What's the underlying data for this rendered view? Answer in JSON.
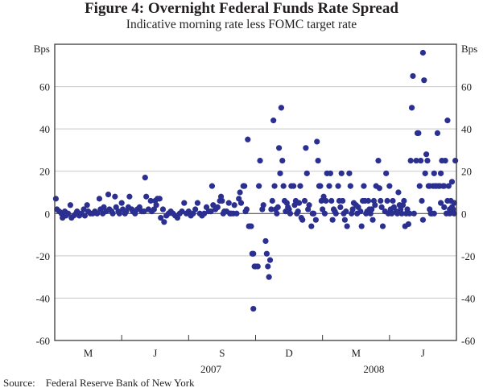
{
  "chart_data": {
    "type": "scatter",
    "title": "Figure 4: Overnight Federal Funds Rate Spread",
    "subtitle": "Indicative morning rate less FOMC target rate",
    "ylabel_left": "Bps",
    "ylabel_right": "Bps",
    "xlabel": "",
    "ylim": [
      -60,
      80
    ],
    "yticks": [
      60,
      40,
      20,
      0,
      -20,
      -40,
      -60
    ],
    "grid": true,
    "x_unit": "months since 1 Feb 2007",
    "xlim": [
      0,
      18
    ],
    "x_major_ticks": [
      3,
      6,
      9,
      12,
      15
    ],
    "x_period_labels": [
      {
        "label": "M",
        "center": 1.5
      },
      {
        "label": "J",
        "center": 4.5
      },
      {
        "label": "S",
        "center": 7.5
      },
      {
        "label": "D",
        "center": 10.5
      },
      {
        "label": "M",
        "center": 13.5
      },
      {
        "label": "J",
        "center": 16.5
      }
    ],
    "year_labels": [
      {
        "label": "2007",
        "center": 7.0
      },
      {
        "label": "2008",
        "center": 14.3
      }
    ],
    "series": [
      {
        "name": "Spread",
        "color": "#2b2f8f",
        "points": [
          [
            0.05,
            7
          ],
          [
            0.1,
            2
          ],
          [
            0.2,
            1
          ],
          [
            0.3,
            0
          ],
          [
            0.35,
            -2
          ],
          [
            0.45,
            1
          ],
          [
            0.5,
            -1
          ],
          [
            0.6,
            0
          ],
          [
            0.7,
            4
          ],
          [
            0.75,
            -2
          ],
          [
            0.85,
            -1
          ],
          [
            0.95,
            0
          ],
          [
            1.0,
            1
          ],
          [
            1.1,
            -1
          ],
          [
            1.2,
            0
          ],
          [
            1.3,
            2
          ],
          [
            1.35,
            -1
          ],
          [
            1.45,
            4
          ],
          [
            1.5,
            1
          ],
          [
            1.6,
            0
          ],
          [
            1.7,
            0
          ],
          [
            1.8,
            1
          ],
          [
            1.9,
            0
          ],
          [
            2.0,
            7
          ],
          [
            2.05,
            2
          ],
          [
            2.15,
            0
          ],
          [
            2.2,
            3
          ],
          [
            2.3,
            1
          ],
          [
            2.4,
            9
          ],
          [
            2.45,
            2
          ],
          [
            2.55,
            1
          ],
          [
            2.6,
            0
          ],
          [
            2.7,
            8
          ],
          [
            2.75,
            3
          ],
          [
            2.85,
            1
          ],
          [
            2.9,
            0
          ],
          [
            3.0,
            5
          ],
          [
            3.05,
            2
          ],
          [
            3.15,
            0
          ],
          [
            3.2,
            1
          ],
          [
            3.3,
            3
          ],
          [
            3.35,
            8
          ],
          [
            3.45,
            2
          ],
          [
            3.5,
            1
          ],
          [
            3.6,
            0
          ],
          [
            3.7,
            2
          ],
          [
            3.8,
            3
          ],
          [
            3.9,
            1
          ],
          [
            4.0,
            1
          ],
          [
            4.05,
            17
          ],
          [
            4.1,
            8
          ],
          [
            4.2,
            2
          ],
          [
            4.3,
            6
          ],
          [
            4.35,
            1
          ],
          [
            4.45,
            2
          ],
          [
            4.5,
            6
          ],
          [
            4.55,
            4
          ],
          [
            4.6,
            7
          ],
          [
            4.7,
            7
          ],
          [
            4.75,
            -2
          ],
          [
            4.85,
            2
          ],
          [
            4.9,
            -4
          ],
          [
            5.0,
            -1
          ],
          [
            5.1,
            0
          ],
          [
            5.2,
            1
          ],
          [
            5.3,
            0
          ],
          [
            5.4,
            -1
          ],
          [
            5.5,
            -2
          ],
          [
            5.6,
            0
          ],
          [
            5.7,
            1
          ],
          [
            5.8,
            5
          ],
          [
            5.9,
            0
          ],
          [
            6.0,
            1
          ],
          [
            6.1,
            -1
          ],
          [
            6.2,
            0
          ],
          [
            6.3,
            2
          ],
          [
            6.4,
            5
          ],
          [
            6.5,
            0
          ],
          [
            6.6,
            -1
          ],
          [
            6.7,
            0
          ],
          [
            6.8,
            3
          ],
          [
            6.9,
            1
          ],
          [
            7.0,
            1
          ],
          [
            7.05,
            13
          ],
          [
            7.1,
            4
          ],
          [
            7.2,
            2
          ],
          [
            7.3,
            3
          ],
          [
            7.4,
            6
          ],
          [
            7.45,
            8
          ],
          [
            7.5,
            6
          ],
          [
            7.55,
            0
          ],
          [
            7.6,
            1
          ],
          [
            7.7,
            1
          ],
          [
            7.8,
            5
          ],
          [
            7.85,
            0
          ],
          [
            7.9,
            0
          ],
          [
            8.0,
            0
          ],
          [
            8.05,
            4
          ],
          [
            8.15,
            0
          ],
          [
            8.25,
            7
          ],
          [
            8.3,
            10
          ],
          [
            8.35,
            5
          ],
          [
            8.45,
            13
          ],
          [
            8.5,
            13
          ],
          [
            8.55,
            1
          ],
          [
            8.6,
            2
          ],
          [
            8.65,
            35
          ],
          [
            8.7,
            -6
          ],
          [
            8.75,
            -6
          ],
          [
            8.8,
            -6
          ],
          [
            8.85,
            -19
          ],
          [
            8.9,
            -19
          ],
          [
            8.95,
            -25
          ],
          [
            9.0,
            -25
          ],
          [
            8.9,
            -45
          ],
          [
            9.1,
            -25
          ],
          [
            9.15,
            13
          ],
          [
            9.2,
            25
          ],
          [
            9.3,
            2
          ],
          [
            9.35,
            4
          ],
          [
            9.45,
            -13
          ],
          [
            9.5,
            -19
          ],
          [
            9.55,
            -25
          ],
          [
            9.6,
            -30
          ],
          [
            9.65,
            -22
          ],
          [
            9.7,
            2
          ],
          [
            9.75,
            6
          ],
          [
            9.8,
            44
          ],
          [
            9.85,
            13
          ],
          [
            9.9,
            2
          ],
          [
            9.95,
            0
          ],
          [
            10.0,
            3
          ],
          [
            10.05,
            31
          ],
          [
            10.1,
            19
          ],
          [
            10.15,
            50
          ],
          [
            10.2,
            25
          ],
          [
            10.25,
            13
          ],
          [
            10.3,
            6
          ],
          [
            10.35,
            1
          ],
          [
            10.4,
            5
          ],
          [
            10.45,
            3
          ],
          [
            10.5,
            2
          ],
          [
            10.55,
            0
          ],
          [
            10.6,
            13
          ],
          [
            10.7,
            13
          ],
          [
            10.75,
            4
          ],
          [
            10.8,
            6
          ],
          [
            10.85,
            0
          ],
          [
            10.9,
            1
          ],
          [
            10.95,
            5
          ],
          [
            11.0,
            13
          ],
          [
            11.05,
            -2
          ],
          [
            11.1,
            -3
          ],
          [
            11.2,
            6
          ],
          [
            11.25,
            31
          ],
          [
            11.3,
            19
          ],
          [
            11.35,
            2
          ],
          [
            11.4,
            4
          ],
          [
            11.5,
            -6
          ],
          [
            11.55,
            0
          ],
          [
            11.6,
            0
          ],
          [
            11.7,
            -3
          ],
          [
            11.75,
            34
          ],
          [
            11.8,
            25
          ],
          [
            11.85,
            13
          ],
          [
            11.9,
            13
          ],
          [
            11.95,
            6
          ],
          [
            12.0,
            2
          ],
          [
            12.05,
            8
          ],
          [
            12.1,
            0
          ],
          [
            12.15,
            6
          ],
          [
            12.2,
            19
          ],
          [
            12.3,
            13
          ],
          [
            12.35,
            19
          ],
          [
            12.4,
            6
          ],
          [
            12.45,
            -3
          ],
          [
            12.5,
            2
          ],
          [
            12.55,
            1
          ],
          [
            12.6,
            0
          ],
          [
            12.7,
            13
          ],
          [
            12.75,
            6
          ],
          [
            12.8,
            3
          ],
          [
            12.85,
            19
          ],
          [
            12.9,
            6
          ],
          [
            12.95,
            0
          ],
          [
            13.0,
            -3
          ],
          [
            13.05,
            1
          ],
          [
            13.1,
            -6
          ],
          [
            13.2,
            19
          ],
          [
            13.25,
            13
          ],
          [
            13.3,
            0
          ],
          [
            13.35,
            2
          ],
          [
            13.4,
            5
          ],
          [
            13.5,
            4
          ],
          [
            13.55,
            0
          ],
          [
            13.6,
            3
          ],
          [
            13.7,
            1
          ],
          [
            13.75,
            -6
          ],
          [
            13.8,
            6
          ],
          [
            13.85,
            13
          ],
          [
            13.9,
            6
          ],
          [
            13.95,
            0
          ],
          [
            14.0,
            1
          ],
          [
            14.05,
            6
          ],
          [
            14.1,
            2
          ],
          [
            14.15,
            0
          ],
          [
            14.2,
            2
          ],
          [
            14.25,
            -3
          ],
          [
            14.3,
            6
          ],
          [
            14.35,
            4
          ],
          [
            14.4,
            13
          ],
          [
            14.5,
            25
          ],
          [
            14.55,
            12
          ],
          [
            14.6,
            6
          ],
          [
            14.65,
            3
          ],
          [
            14.7,
            -6
          ],
          [
            14.8,
            1
          ],
          [
            14.85,
            19
          ],
          [
            14.9,
            6
          ],
          [
            14.95,
            0
          ],
          [
            15.0,
            13
          ],
          [
            15.05,
            2
          ],
          [
            15.1,
            0
          ],
          [
            15.15,
            6
          ],
          [
            15.2,
            3
          ],
          [
            15.3,
            1
          ],
          [
            15.35,
            0
          ],
          [
            15.4,
            10
          ],
          [
            15.45,
            4
          ],
          [
            15.5,
            2
          ],
          [
            15.55,
            0
          ],
          [
            15.6,
            4
          ],
          [
            15.65,
            6
          ],
          [
            15.7,
            -6
          ],
          [
            15.75,
            0
          ],
          [
            15.8,
            2
          ],
          [
            15.85,
            -5
          ],
          [
            15.9,
            0
          ],
          [
            15.95,
            25
          ],
          [
            16.0,
            50
          ],
          [
            16.05,
            65
          ],
          [
            16.1,
            0
          ],
          [
            16.2,
            25
          ],
          [
            16.25,
            38
          ],
          [
            16.3,
            38
          ],
          [
            16.35,
            13
          ],
          [
            16.4,
            25
          ],
          [
            16.45,
            6
          ],
          [
            16.5,
            76
          ],
          [
            16.55,
            63
          ],
          [
            16.6,
            19
          ],
          [
            16.65,
            28
          ],
          [
            16.7,
            25
          ],
          [
            16.75,
            13
          ],
          [
            16.8,
            13
          ],
          [
            16.85,
            0
          ],
          [
            16.9,
            0
          ],
          [
            16.95,
            13
          ],
          [
            17.0,
            19
          ],
          [
            17.05,
            13
          ],
          [
            17.1,
            13
          ],
          [
            17.15,
            38
          ],
          [
            17.2,
            13
          ],
          [
            17.25,
            13
          ],
          [
            17.3,
            19
          ],
          [
            17.35,
            25
          ],
          [
            17.4,
            13
          ],
          [
            17.45,
            13
          ],
          [
            17.5,
            25
          ],
          [
            17.55,
            0
          ],
          [
            17.6,
            44
          ],
          [
            17.65,
            13
          ],
          [
            17.7,
            0
          ],
          [
            17.75,
            6
          ],
          [
            17.8,
            15
          ],
          [
            17.85,
            2
          ],
          [
            17.9,
            0
          ],
          [
            17.95,
            25
          ],
          [
            17.6,
            6
          ],
          [
            17.0,
            0
          ],
          [
            16.8,
            2
          ],
          [
            16.5,
            -3
          ],
          [
            17.3,
            5
          ],
          [
            17.45,
            3
          ],
          [
            17.7,
            2
          ],
          [
            17.8,
            3
          ],
          [
            17.9,
            5
          ]
        ]
      }
    ]
  },
  "source_note": "Source:    Federal Reserve Bank of New York"
}
